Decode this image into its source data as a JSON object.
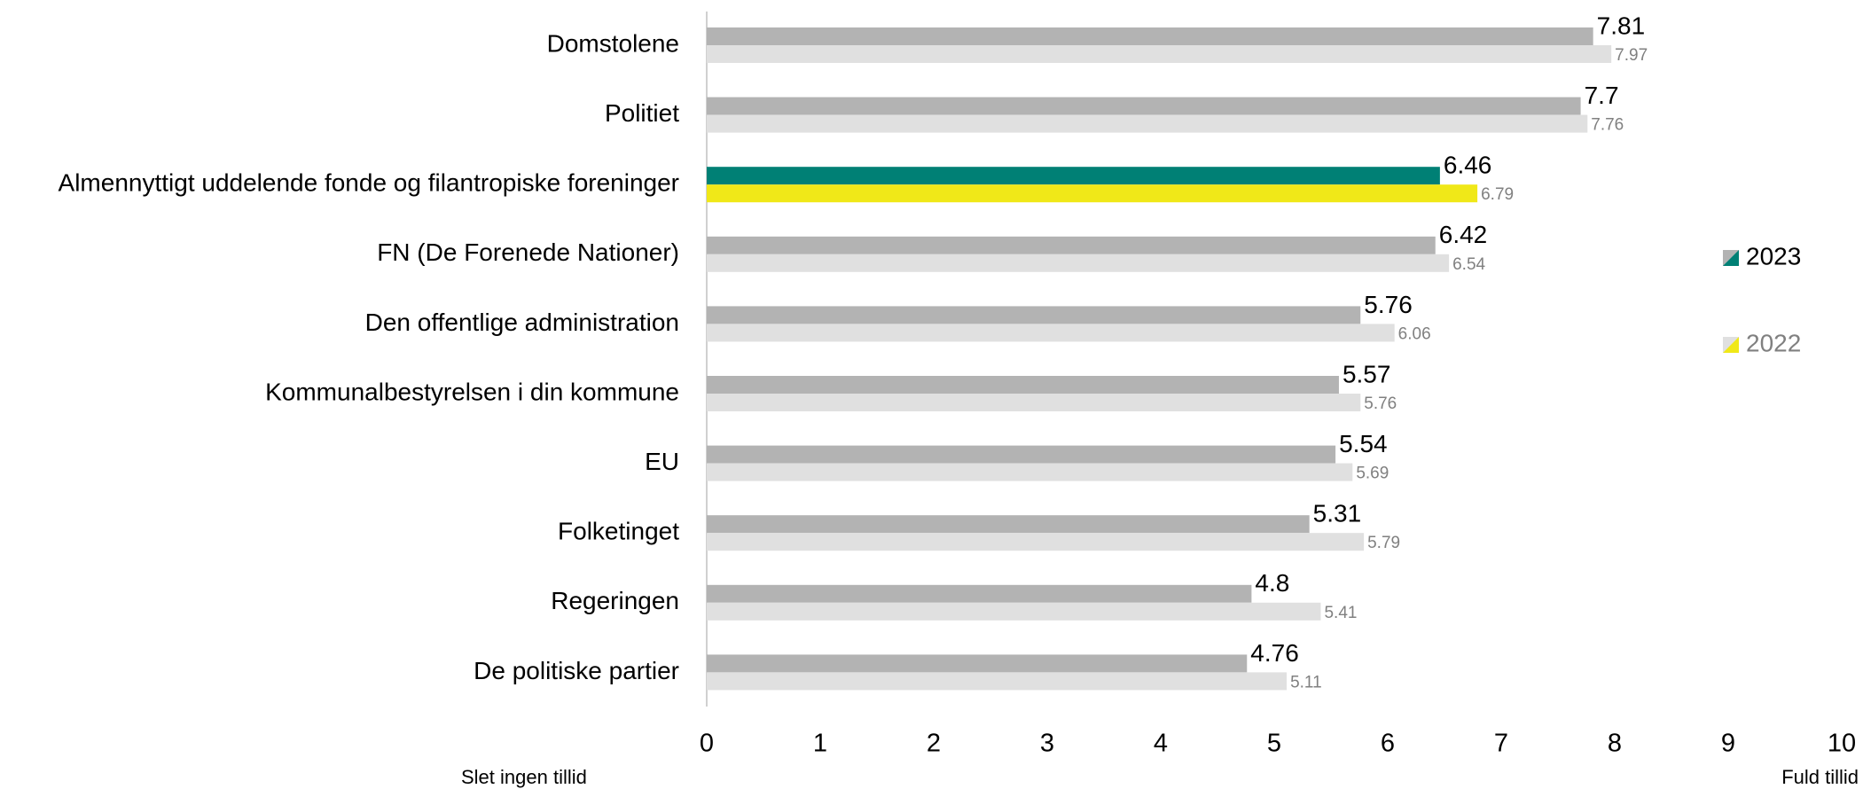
{
  "chart_data": {
    "type": "bar",
    "orientation": "horizontal",
    "categories": [
      "Domstolene",
      "Politiet",
      "Almennyttigt uddelende fonde og filantropiske foreninger",
      "FN (De Forenede Nationer)",
      "Den offentlige administration",
      "Kommunalbestyrelsen i din kommune",
      "EU",
      "Folketinget",
      "Regeringen",
      "De politiske partier"
    ],
    "series": [
      {
        "name": "2023",
        "color": "#b3b3b3",
        "highlight_color": "#008075",
        "label_color": "#000000",
        "values": [
          7.81,
          7.7,
          6.46,
          6.42,
          5.76,
          5.57,
          5.54,
          5.31,
          4.8,
          4.76
        ]
      },
      {
        "name": "2022",
        "color": "#e0e0e0",
        "highlight_color": "#f0e818",
        "label_color": "#808080",
        "values": [
          7.97,
          7.76,
          6.79,
          6.54,
          6.06,
          5.76,
          5.69,
          5.79,
          5.41,
          5.11
        ]
      }
    ],
    "highlight_index": 2,
    "xlim": [
      0,
      10
    ],
    "xticks": [
      0,
      1,
      2,
      3,
      4,
      5,
      6,
      7,
      8,
      9,
      10
    ],
    "x_min_label": "Slet ingen tillid",
    "x_max_label": "Fuld tillid",
    "grid": false
  }
}
